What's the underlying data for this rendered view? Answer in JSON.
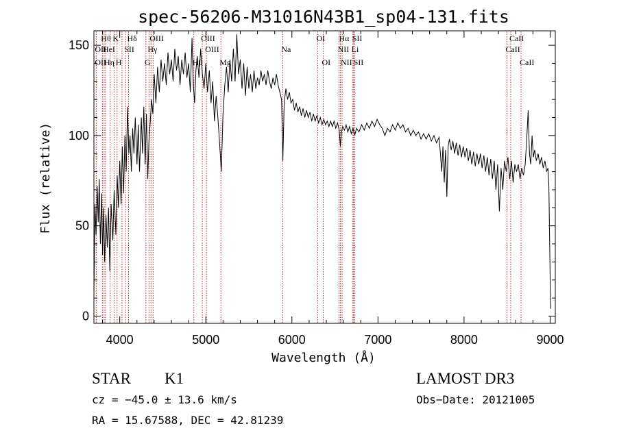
{
  "title": "spec-56206-M31016N43B1_sp04-131.fits",
  "chart_data": {
    "type": "line",
    "xlabel": "Wavelength (Å)",
    "ylabel": "Flux (relative)",
    "xlim": [
      3700,
      9060
    ],
    "ylim": [
      -4,
      158
    ],
    "xticks": [
      4000,
      5000,
      6000,
      7000,
      8000,
      9000
    ],
    "yticks": [
      0,
      50,
      100,
      150
    ],
    "grid": false,
    "series": [
      {
        "points": [
          [
            3700,
            12
          ],
          [
            3712,
            62
          ],
          [
            3725,
            45
          ],
          [
            3738,
            72
          ],
          [
            3750,
            52
          ],
          [
            3762,
            76
          ],
          [
            3775,
            40
          ],
          [
            3790,
            68
          ],
          [
            3800,
            34
          ],
          [
            3812,
            60
          ],
          [
            3825,
            30
          ],
          [
            3840,
            56
          ],
          [
            3855,
            38
          ],
          [
            3870,
            60
          ],
          [
            3885,
            25
          ],
          [
            3900,
            62
          ],
          [
            3920,
            42
          ],
          [
            3935,
            70
          ],
          [
            3955,
            45
          ],
          [
            3970,
            78
          ],
          [
            3985,
            60
          ],
          [
            4000,
            86
          ],
          [
            4015,
            62
          ],
          [
            4030,
            94
          ],
          [
            4045,
            68
          ],
          [
            4060,
            100
          ],
          [
            4075,
            80
          ],
          [
            4090,
            116
          ],
          [
            4105,
            90
          ],
          [
            4120,
            100
          ],
          [
            4135,
            80
          ],
          [
            4150,
            104
          ],
          [
            4165,
            90
          ],
          [
            4180,
            110
          ],
          [
            4200,
            84
          ],
          [
            4215,
            106
          ],
          [
            4230,
            80
          ],
          [
            4250,
            110
          ],
          [
            4265,
            90
          ],
          [
            4280,
            116
          ],
          [
            4295,
            84
          ],
          [
            4310,
            112
          ],
          [
            4325,
            76
          ],
          [
            4340,
            98
          ],
          [
            4355,
            108
          ],
          [
            4370,
            120
          ],
          [
            4385,
            112
          ],
          [
            4400,
            134
          ],
          [
            4420,
            118
          ],
          [
            4440,
            138
          ],
          [
            4460,
            124
          ],
          [
            4480,
            142
          ],
          [
            4500,
            130
          ],
          [
            4520,
            140
          ],
          [
            4540,
            128
          ],
          [
            4560,
            146
          ],
          [
            4580,
            134
          ],
          [
            4600,
            142
          ],
          [
            4620,
            130
          ],
          [
            4640,
            148
          ],
          [
            4660,
            136
          ],
          [
            4680,
            144
          ],
          [
            4700,
            128
          ],
          [
            4720,
            142
          ],
          [
            4740,
            134
          ],
          [
            4760,
            146
          ],
          [
            4780,
            132
          ],
          [
            4800,
            140
          ],
          [
            4820,
            124
          ],
          [
            4840,
            154
          ],
          [
            4855,
            128
          ],
          [
            4870,
            118
          ],
          [
            4885,
            136
          ],
          [
            4900,
            144
          ],
          [
            4920,
            132
          ],
          [
            4940,
            148
          ],
          [
            4960,
            134
          ],
          [
            4980,
            126
          ],
          [
            5000,
            140
          ],
          [
            5020,
            124
          ],
          [
            5040,
            136
          ],
          [
            5060,
            118
          ],
          [
            5080,
            130
          ],
          [
            5100,
            108
          ],
          [
            5120,
            122
          ],
          [
            5140,
            110
          ],
          [
            5160,
            96
          ],
          [
            5180,
            80
          ],
          [
            5200,
            112
          ],
          [
            5220,
            128
          ],
          [
            5240,
            138
          ],
          [
            5260,
            124
          ],
          [
            5280,
            142
          ],
          [
            5300,
            130
          ],
          [
            5320,
            148
          ],
          [
            5340,
            130
          ],
          [
            5360,
            156
          ],
          [
            5380,
            134
          ],
          [
            5400,
            142
          ],
          [
            5420,
            126
          ],
          [
            5440,
            140
          ],
          [
            5460,
            122
          ],
          [
            5480,
            138
          ],
          [
            5500,
            126
          ],
          [
            5520,
            134
          ],
          [
            5540,
            124
          ],
          [
            5560,
            136
          ],
          [
            5580,
            126
          ],
          [
            5600,
            132
          ],
          [
            5620,
            128
          ],
          [
            5640,
            136
          ],
          [
            5660,
            130
          ],
          [
            5680,
            134
          ],
          [
            5700,
            128
          ],
          [
            5720,
            136
          ],
          [
            5740,
            130
          ],
          [
            5760,
            126
          ],
          [
            5780,
            132
          ],
          [
            5800,
            128
          ],
          [
            5820,
            134
          ],
          [
            5840,
            128
          ],
          [
            5860,
            124
          ],
          [
            5880,
            120
          ],
          [
            5895,
            86
          ],
          [
            5910,
            118
          ],
          [
            5930,
            126
          ],
          [
            5950,
            120
          ],
          [
            5970,
            124
          ],
          [
            5990,
            118
          ],
          [
            6010,
            120
          ],
          [
            6030,
            114
          ],
          [
            6050,
            118
          ],
          [
            6070,
            113
          ],
          [
            6090,
            116
          ],
          [
            6110,
            111
          ],
          [
            6130,
            115
          ],
          [
            6150,
            110
          ],
          [
            6170,
            114
          ],
          [
            6190,
            110
          ],
          [
            6210,
            113
          ],
          [
            6230,
            108
          ],
          [
            6250,
            112
          ],
          [
            6270,
            108
          ],
          [
            6290,
            111
          ],
          [
            6310,
            107
          ],
          [
            6330,
            110
          ],
          [
            6350,
            106
          ],
          [
            6370,
            109
          ],
          [
            6390,
            106
          ],
          [
            6410,
            108
          ],
          [
            6430,
            105
          ],
          [
            6450,
            108
          ],
          [
            6470,
            105
          ],
          [
            6490,
            108
          ],
          [
            6510,
            104
          ],
          [
            6530,
            107
          ],
          [
            6550,
            103
          ],
          [
            6563,
            94
          ],
          [
            6575,
            102
          ],
          [
            6590,
            105
          ],
          [
            6610,
            103
          ],
          [
            6630,
            106
          ],
          [
            6650,
            102
          ],
          [
            6670,
            105
          ],
          [
            6690,
            101
          ],
          [
            6710,
            104
          ],
          [
            6730,
            100
          ],
          [
            6750,
            104
          ],
          [
            6780,
            102
          ],
          [
            6810,
            106
          ],
          [
            6840,
            103
          ],
          [
            6870,
            107
          ],
          [
            6900,
            104
          ],
          [
            6930,
            108
          ],
          [
            6960,
            105
          ],
          [
            6990,
            109
          ],
          [
            7020,
            106
          ],
          [
            7050,
            104
          ],
          [
            7080,
            100
          ],
          [
            7110,
            104
          ],
          [
            7140,
            102
          ],
          [
            7170,
            106
          ],
          [
            7200,
            103
          ],
          [
            7230,
            107
          ],
          [
            7260,
            104
          ],
          [
            7290,
            106
          ],
          [
            7320,
            102
          ],
          [
            7350,
            104
          ],
          [
            7380,
            100
          ],
          [
            7410,
            103
          ],
          [
            7440,
            100
          ],
          [
            7470,
            102
          ],
          [
            7500,
            98
          ],
          [
            7530,
            101
          ],
          [
            7560,
            98
          ],
          [
            7590,
            101
          ],
          [
            7620,
            97
          ],
          [
            7650,
            100
          ],
          [
            7680,
            96
          ],
          [
            7710,
            99
          ],
          [
            7725,
            90
          ],
          [
            7740,
            80
          ],
          [
            7755,
            94
          ],
          [
            7770,
            74
          ],
          [
            7785,
            92
          ],
          [
            7800,
            66
          ],
          [
            7815,
            94
          ],
          [
            7830,
            98
          ],
          [
            7850,
            92
          ],
          [
            7870,
            97
          ],
          [
            7890,
            90
          ],
          [
            7910,
            96
          ],
          [
            7930,
            89
          ],
          [
            7950,
            95
          ],
          [
            7970,
            88
          ],
          [
            7990,
            94
          ],
          [
            8010,
            88
          ],
          [
            8030,
            93
          ],
          [
            8050,
            86
          ],
          [
            8070,
            92
          ],
          [
            8090,
            84
          ],
          [
            8110,
            91
          ],
          [
            8130,
            83
          ],
          [
            8150,
            90
          ],
          [
            8170,
            84
          ],
          [
            8190,
            90
          ],
          [
            8210,
            82
          ],
          [
            8230,
            89
          ],
          [
            8250,
            80
          ],
          [
            8270,
            88
          ],
          [
            8290,
            78
          ],
          [
            8310,
            87
          ],
          [
            8330,
            76
          ],
          [
            8350,
            86
          ],
          [
            8370,
            70
          ],
          [
            8390,
            84
          ],
          [
            8410,
            58
          ],
          [
            8430,
            82
          ],
          [
            8450,
            70
          ],
          [
            8470,
            86
          ],
          [
            8490,
            80
          ],
          [
            8510,
            88
          ],
          [
            8530,
            76
          ],
          [
            8550,
            86
          ],
          [
            8570,
            74
          ],
          [
            8590,
            84
          ],
          [
            8610,
            80
          ],
          [
            8630,
            84
          ],
          [
            8650,
            76
          ],
          [
            8670,
            82
          ],
          [
            8690,
            78
          ],
          [
            8710,
            84
          ],
          [
            8730,
            100
          ],
          [
            8745,
            114
          ],
          [
            8760,
            90
          ],
          [
            8775,
            84
          ],
          [
            8790,
            100
          ],
          [
            8805,
            88
          ],
          [
            8820,
            92
          ],
          [
            8840,
            86
          ],
          [
            8860,
            90
          ],
          [
            8880,
            84
          ],
          [
            8900,
            88
          ],
          [
            8920,
            82
          ],
          [
            8940,
            86
          ],
          [
            8960,
            80
          ],
          [
            8975,
            82
          ],
          [
            8985,
            72
          ],
          [
            8995,
            40
          ],
          [
            9005,
            4
          ]
        ]
      }
    ],
    "lines": [
      {
        "name": "Hθ",
        "x": 3798,
        "row": 0,
        "label": true
      },
      {
        "name": "OII",
        "x": 3727,
        "row": 1,
        "label": true
      },
      {
        "name": "OII",
        "x": 3727,
        "row": 2,
        "label": true
      },
      {
        "name": "HeI",
        "x": 3819,
        "row": 1,
        "label": true
      },
      {
        "name": "Hη",
        "x": 3835,
        "row": 2,
        "label": true
      },
      {
        "name": "K",
        "x": 3934,
        "row": 0,
        "label": true
      },
      {
        "name": "SII",
        "x": 4068,
        "row": 1,
        "label": true
      },
      {
        "name": "H",
        "x": 3969,
        "row": 2,
        "label": true
      },
      {
        "name": "Hδ",
        "x": 4102,
        "row": 0,
        "label": true
      },
      {
        "name": "OIII",
        "x": 4363,
        "row": 0,
        "label": true
      },
      {
        "name": "Hγ",
        "x": 4340,
        "row": 1,
        "label": true
      },
      {
        "name": "G",
        "x": 4304,
        "row": 2,
        "label": true
      },
      {
        "name": "Hβ",
        "x": 4861,
        "row": 2,
        "label": true
      },
      {
        "name": "OIII",
        "x": 4959,
        "row": 0,
        "label": true
      },
      {
        "name": "OIII",
        "x": 5007,
        "row": 1,
        "label": true
      },
      {
        "name": "Mg",
        "x": 5175,
        "row": 2,
        "label": true
      },
      {
        "name": "Na",
        "x": 5893,
        "row": 1,
        "label": true
      },
      {
        "name": "OI",
        "x": 6300,
        "row": 0,
        "label": true
      },
      {
        "name": "OI",
        "x": 6364,
        "row": 2,
        "label": true
      },
      {
        "name": "Hα",
        "x": 6563,
        "row": 0,
        "label": true
      },
      {
        "name": "NII",
        "x": 6548,
        "row": 1,
        "label": true
      },
      {
        "name": "NII",
        "x": 6583,
        "row": 2,
        "label": true
      },
      {
        "name": "SII",
        "x": 6716,
        "row": 0,
        "label": true
      },
      {
        "name": "Li",
        "x": 6708,
        "row": 1,
        "label": true
      },
      {
        "name": "SII",
        "x": 6731,
        "row": 2,
        "label": true
      },
      {
        "name": "CaII",
        "x": 8542,
        "row": 0,
        "label": true
      },
      {
        "name": "CaII",
        "x": 8498,
        "row": 1,
        "label": true
      },
      {
        "name": "CaII",
        "x": 8662,
        "row": 2,
        "label": true
      },
      {
        "name": "",
        "x": 3889,
        "row": 0,
        "label": false
      },
      {
        "name": "",
        "x": 4026,
        "row": 0,
        "label": false
      },
      {
        "name": "",
        "x": 4388,
        "row": 0,
        "label": false
      }
    ]
  },
  "info": {
    "class": "STAR",
    "subclass": "K1",
    "survey": "LAMOST DR3",
    "cz": "cz = −45.0 ± 13.6 km/s",
    "obs_date": "Obs−Date: 20121005",
    "radec": "RA =  15.67588, DEC =  42.81239"
  },
  "colors": {
    "line_marker": "#cc2020",
    "spectrum": "#000000"
  }
}
